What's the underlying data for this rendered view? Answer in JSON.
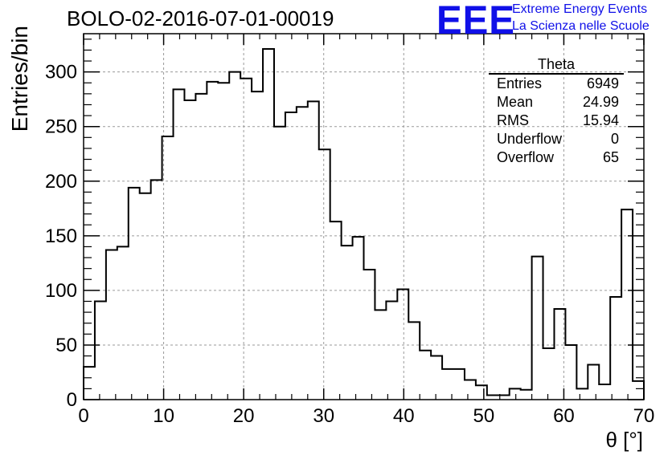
{
  "header": {
    "title": "BOLO-02-2016-07-01-00019"
  },
  "logo": {
    "mark": "EEE",
    "line1": "Extreme Energy Events",
    "line2": "La Scienza nelle Scuole",
    "color": "#1010e8"
  },
  "stats_box": {
    "title": "Theta",
    "rows": [
      {
        "label": "Entries",
        "value": "6949"
      },
      {
        "label": "Mean",
        "value": "24.99"
      },
      {
        "label": "RMS",
        "value": "15.94"
      },
      {
        "label": "Underflow",
        "value": "0"
      },
      {
        "label": "Overflow",
        "value": "65"
      }
    ]
  },
  "chart_data": {
    "type": "bar",
    "style": "step-histogram",
    "title": "BOLO-02-2016-07-01-00019",
    "xlabel": "θ [°]",
    "ylabel": "Entries/bin",
    "xlim": [
      0,
      70
    ],
    "ylim": [
      0,
      335
    ],
    "grid": true,
    "bin_width": 1.4,
    "bin_edges_start": 0,
    "values": [
      30,
      90,
      137,
      140,
      194,
      189,
      201,
      241,
      284,
      274,
      280,
      291,
      290,
      300,
      294,
      282,
      321,
      250,
      263,
      268,
      273,
      229,
      163,
      141,
      149,
      119,
      82,
      90,
      101,
      71,
      45,
      40,
      28,
      28,
      18,
      13,
      4,
      4,
      10,
      9,
      131,
      47,
      83,
      50,
      10,
      32,
      14,
      94,
      174,
      17
    ],
    "xticks": [
      0,
      10,
      20,
      30,
      40,
      50,
      60,
      70
    ],
    "yticks": [
      0,
      50,
      100,
      150,
      200,
      250,
      300
    ],
    "line_color": "#000000"
  }
}
